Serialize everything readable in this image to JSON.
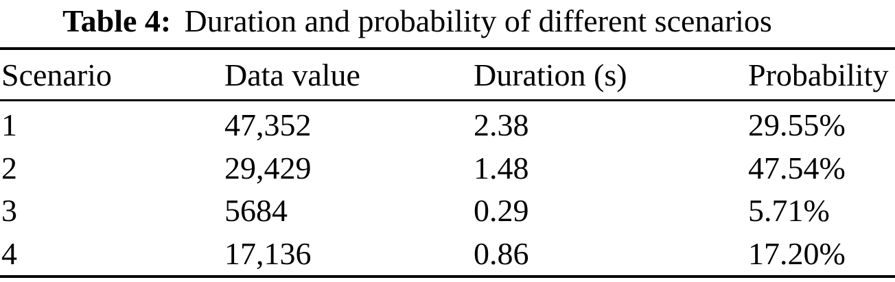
{
  "caption": {
    "label": "Table 4:",
    "text": "Duration and probability of different scenarios"
  },
  "table": {
    "headers": [
      "Scenario",
      "Data value",
      "Duration (s)",
      "Probability"
    ],
    "rows": [
      {
        "scenario": "1",
        "data_value": "47,352",
        "duration_s": "2.38",
        "probability": "29.55%"
      },
      {
        "scenario": "2",
        "data_value": "29,429",
        "duration_s": "1.48",
        "probability": "47.54%"
      },
      {
        "scenario": "3",
        "data_value": "5684",
        "duration_s": "0.29",
        "probability": "5.71%"
      },
      {
        "scenario": "4",
        "data_value": "17,136",
        "duration_s": "0.86",
        "probability": "17.20%"
      }
    ]
  },
  "colors": {
    "text": "#000000",
    "background": "#ffffff",
    "rule": "#000000"
  }
}
